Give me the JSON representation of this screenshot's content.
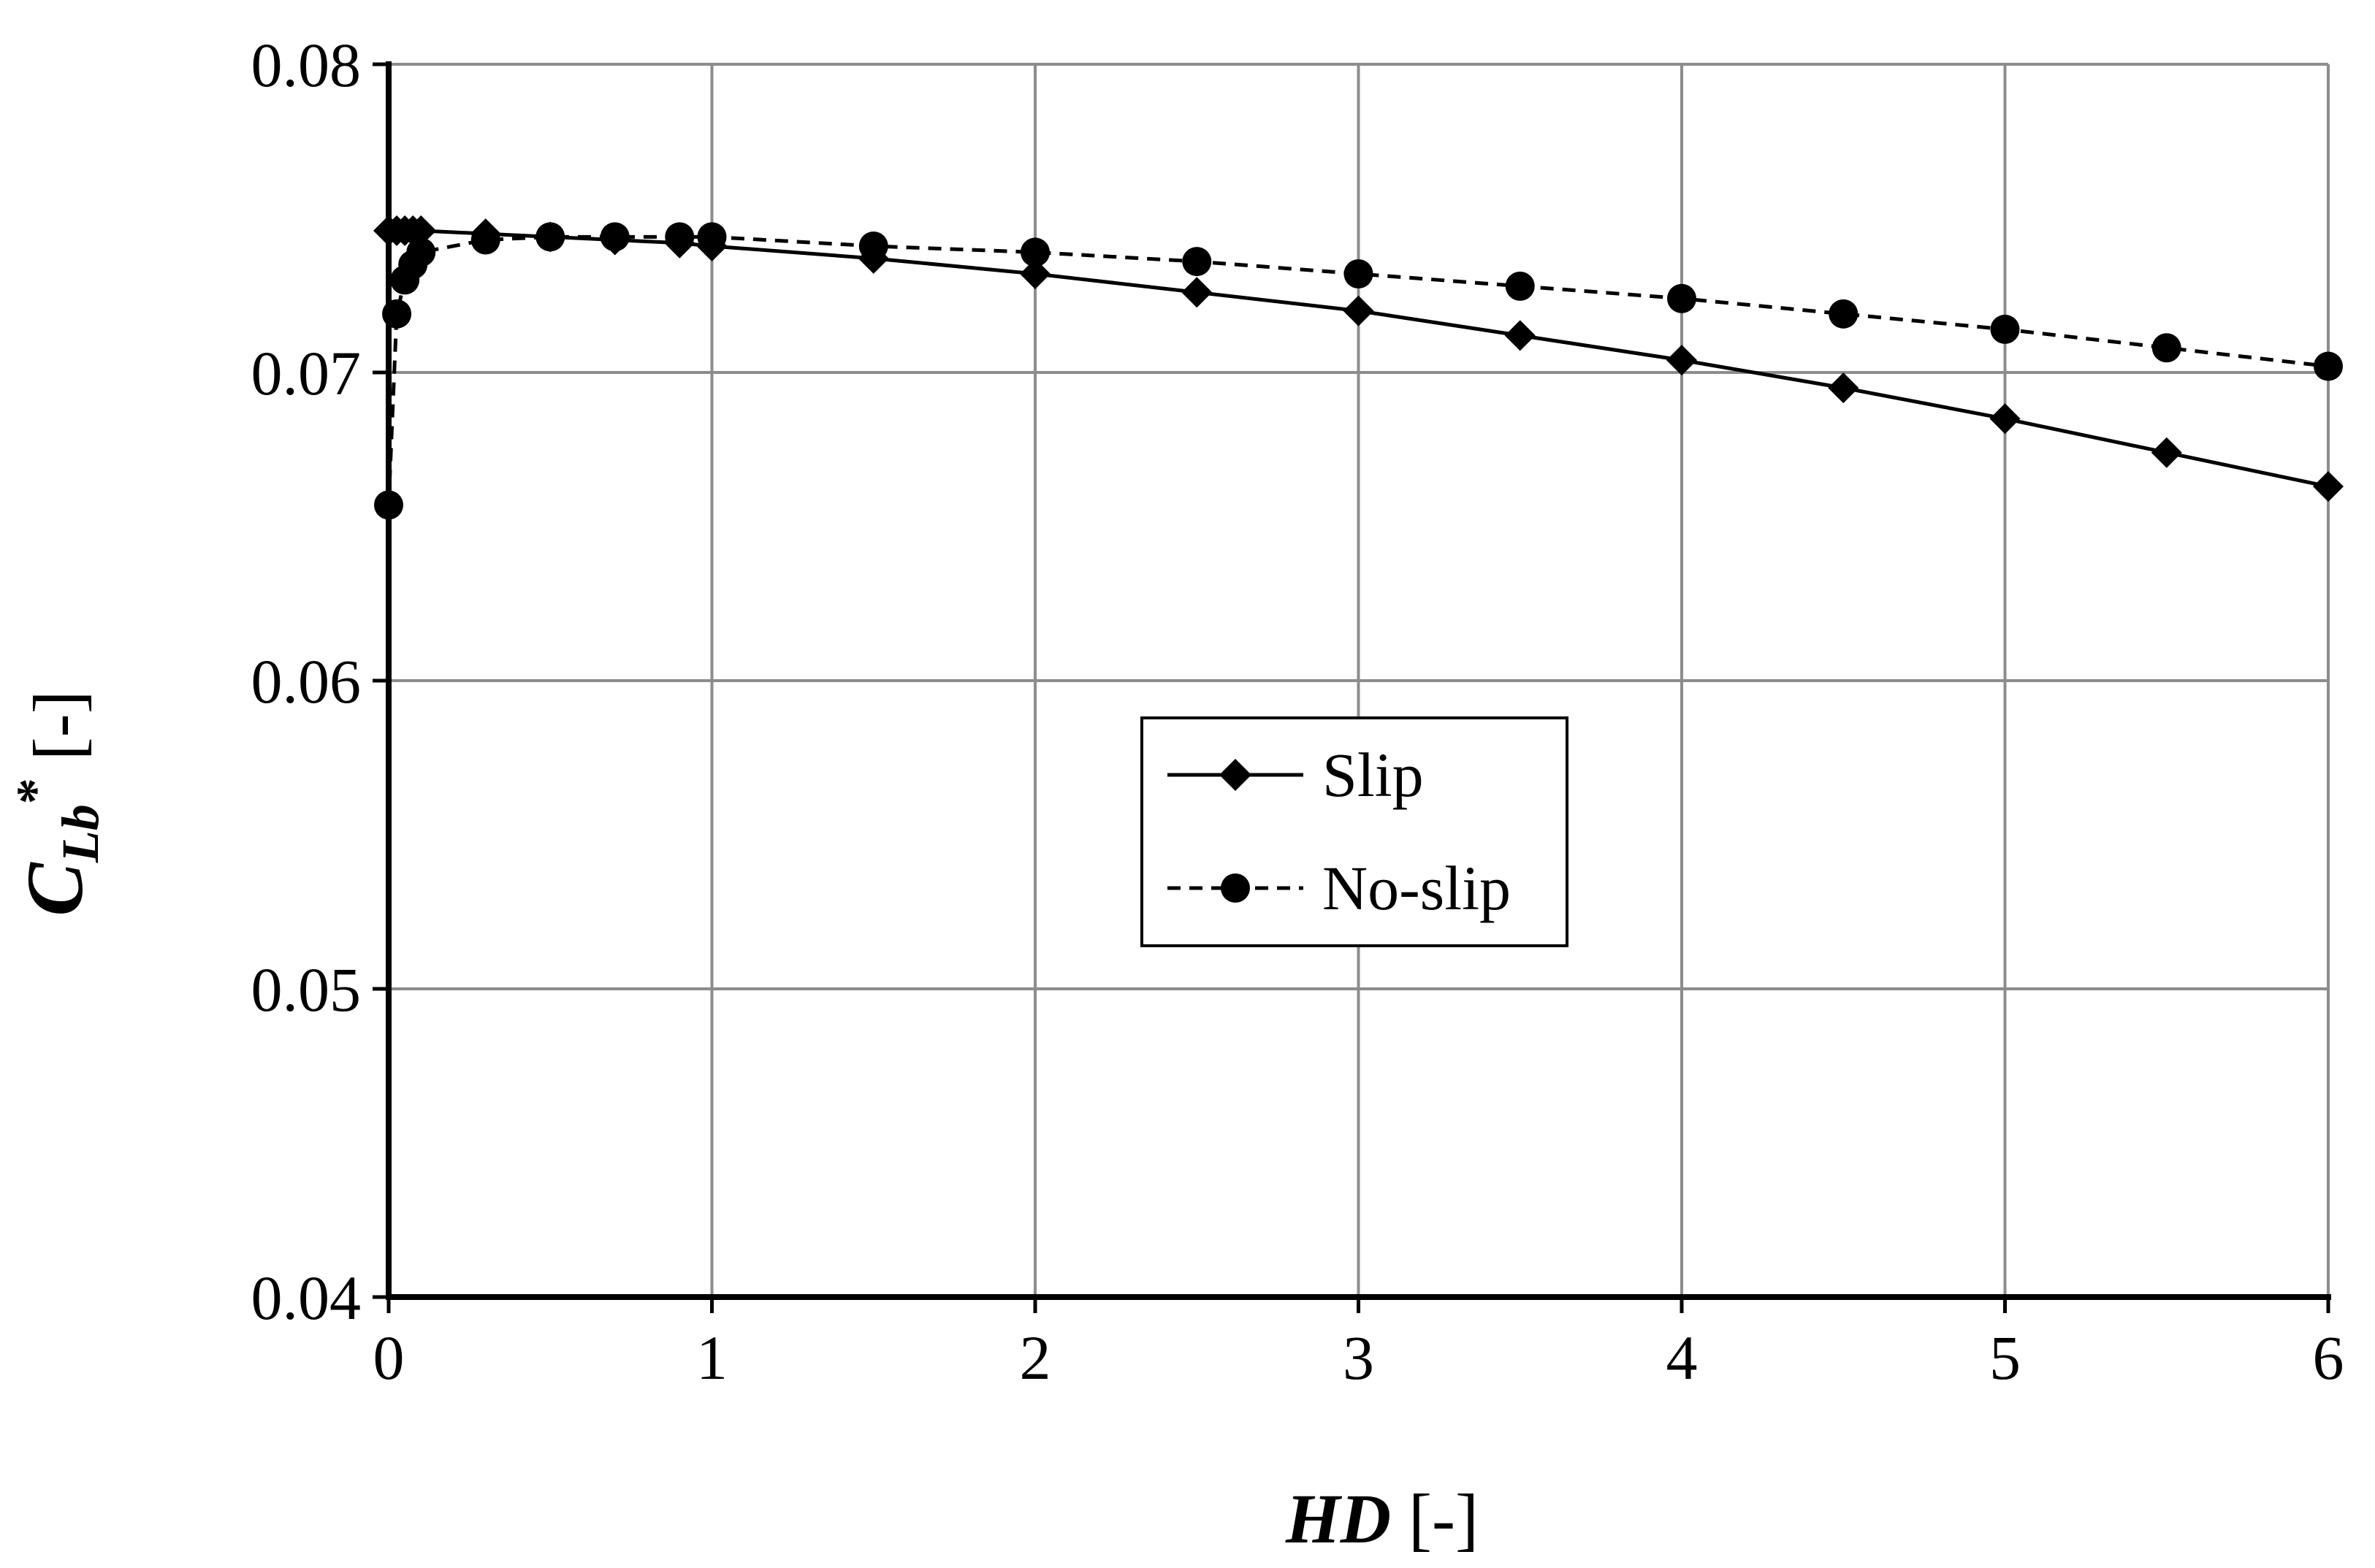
{
  "chart_data": {
    "type": "line",
    "title": "",
    "xlabel": {
      "main": "HD",
      "unit": " [-]"
    },
    "ylabel": {
      "main": "C",
      "sub": "Lb",
      "sup": "*",
      "unit": " [-]"
    },
    "xlim": [
      0,
      6
    ],
    "ylim": [
      0.04,
      0.08
    ],
    "xticks": [
      "0",
      "1",
      "2",
      "3",
      "4",
      "5",
      "6"
    ],
    "yticks": [
      "0.04",
      "0.05",
      "0.06",
      "0.07",
      "0.08"
    ],
    "grid": true,
    "legend_position": "center",
    "series": [
      {
        "name": "Slip",
        "marker": "diamond",
        "line_style": "solid",
        "color": "#000000",
        "x": [
          0.0,
          0.025,
          0.05,
          0.075,
          0.1,
          0.3,
          0.5,
          0.7,
          0.9,
          1.0,
          1.5,
          2.0,
          2.5,
          3.0,
          3.5,
          4.0,
          4.5,
          5.0,
          5.5,
          6.0
        ],
        "y": [
          0.0746,
          0.0746,
          0.0746,
          0.0746,
          0.0746,
          0.0745,
          0.0744,
          0.0743,
          0.0742,
          0.0741,
          0.0737,
          0.0732,
          0.0726,
          0.072,
          0.0712,
          0.0704,
          0.0695,
          0.0685,
          0.0674,
          0.0663
        ]
      },
      {
        "name": "No-slip",
        "marker": "circle",
        "line_style": "dashed",
        "color": "#000000",
        "x": [
          0.0,
          0.025,
          0.05,
          0.075,
          0.1,
          0.3,
          0.5,
          0.7,
          0.9,
          1.0,
          1.5,
          2.0,
          2.5,
          3.0,
          3.5,
          4.0,
          4.5,
          5.0,
          5.5,
          6.0
        ],
        "y": [
          0.0657,
          0.0719,
          0.073,
          0.0735,
          0.0739,
          0.0743,
          0.0744,
          0.0744,
          0.0744,
          0.0744,
          0.0741,
          0.0739,
          0.0736,
          0.0732,
          0.0728,
          0.0724,
          0.0719,
          0.0714,
          0.0708,
          0.0702
        ]
      }
    ]
  }
}
